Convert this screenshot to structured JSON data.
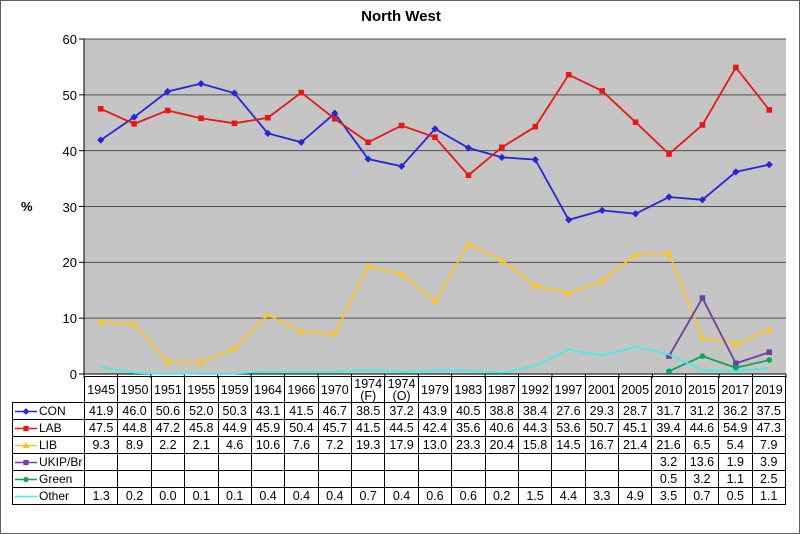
{
  "chart_data": {
    "type": "line",
    "title": "North West",
    "ylabel": "%",
    "ylim": [
      0,
      60
    ],
    "yticks": [
      0,
      10,
      20,
      30,
      40,
      50,
      60
    ],
    "grid": true,
    "legend_position": "table-left",
    "plot_bg": "#c5c5c5",
    "gridline_color": "#4d4d4d",
    "axis_color": "#000000",
    "categories": [
      "1945",
      "1950",
      "1951",
      "1955",
      "1959",
      "1964",
      "1966",
      "1970",
      "1974 (F)",
      "1974 (O)",
      "1979",
      "1983",
      "1987",
      "1992",
      "1997",
      "2001",
      "2005",
      "2010",
      "2015",
      "2017",
      "2019"
    ],
    "series": [
      {
        "name": "CON",
        "color": "#2626d2",
        "marker": "diamond",
        "values": [
          41.9,
          46.0,
          50.6,
          52.0,
          50.3,
          43.1,
          41.5,
          46.7,
          38.5,
          37.2,
          43.9,
          40.5,
          38.8,
          38.4,
          27.6,
          29.3,
          28.7,
          31.7,
          31.2,
          36.2,
          37.5
        ]
      },
      {
        "name": "LAB",
        "color": "#e81717",
        "marker": "square",
        "values": [
          47.5,
          44.8,
          47.2,
          45.8,
          44.9,
          45.9,
          50.4,
          45.7,
          41.5,
          44.5,
          42.4,
          35.6,
          40.6,
          44.3,
          53.6,
          50.7,
          45.1,
          39.4,
          44.6,
          54.9,
          47.3
        ]
      },
      {
        "name": "LIB",
        "color": "#ffc322",
        "marker": "triangle",
        "values": [
          9.3,
          8.9,
          2.2,
          2.1,
          4.6,
          10.6,
          7.6,
          7.2,
          19.3,
          17.9,
          13.0,
          23.3,
          20.4,
          15.8,
          14.5,
          16.7,
          21.4,
          21.6,
          6.5,
          5.4,
          7.9
        ]
      },
      {
        "name": "UKIP/Br",
        "color": "#7040a0",
        "marker": "square",
        "values": [
          null,
          null,
          null,
          null,
          null,
          null,
          null,
          null,
          null,
          null,
          null,
          null,
          null,
          null,
          null,
          null,
          null,
          3.2,
          13.6,
          1.9,
          3.9
        ]
      },
      {
        "name": "Green",
        "color": "#0aa558",
        "marker": "circle",
        "values": [
          null,
          null,
          null,
          null,
          null,
          null,
          null,
          null,
          null,
          null,
          null,
          null,
          null,
          null,
          null,
          null,
          null,
          0.5,
          3.2,
          1.1,
          2.5
        ]
      },
      {
        "name": "Other",
        "color": "#45ecec",
        "marker": "none",
        "values": [
          1.3,
          0.2,
          0.0,
          0.1,
          0.1,
          0.4,
          0.4,
          0.4,
          0.7,
          0.4,
          0.6,
          0.6,
          0.2,
          1.5,
          4.4,
          3.3,
          4.9,
          3.5,
          0.7,
          0.5,
          1.1
        ]
      }
    ]
  }
}
